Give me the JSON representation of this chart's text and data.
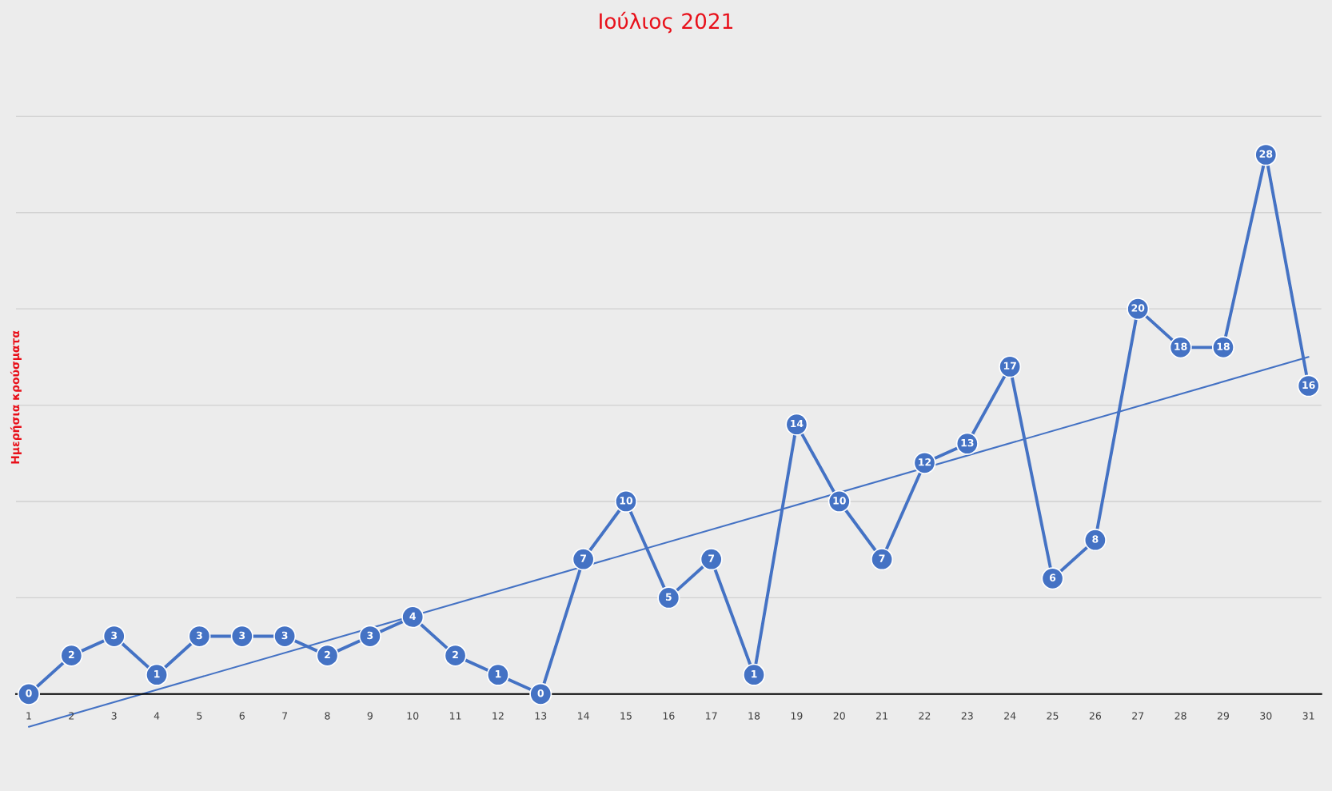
{
  "chart_data": {
    "type": "line",
    "title": "Ιούλιος 2021",
    "ylabel": "Ημερήσια κρούσματα",
    "categories": [
      "1",
      "2",
      "3",
      "4",
      "5",
      "6",
      "7",
      "8",
      "9",
      "10",
      "11",
      "12",
      "13",
      "14",
      "15",
      "16",
      "17",
      "18",
      "19",
      "20",
      "21",
      "22",
      "23",
      "24",
      "25",
      "26",
      "27",
      "28",
      "29",
      "30",
      "31"
    ],
    "series": [
      {
        "color": "#4472c4",
        "marker": "circle",
        "data_labels": true,
        "values": [
          0,
          2,
          3,
          1,
          3,
          3,
          3,
          2,
          3,
          4,
          2,
          1,
          0,
          7,
          10,
          5,
          7,
          1,
          14,
          10,
          7,
          12,
          13,
          17,
          6,
          8,
          20,
          18,
          18,
          28,
          16
        ]
      },
      {
        "type": "line",
        "color": "#4472c4",
        "marker": "none",
        "x": [
          "1",
          "31"
        ],
        "values": [
          -1.7,
          17.5
        ]
      }
    ],
    "yticks": [
      {
        "value": 0,
        "label": null
      },
      {
        "value": 5,
        "label": null
      },
      {
        "value": 10,
        "label": null
      },
      {
        "value": 15,
        "label": null
      },
      {
        "value": 20,
        "label": null
      },
      {
        "value": 25,
        "label": null
      },
      {
        "value": 30,
        "label": null
      }
    ],
    "tick_labels": "x",
    "grid": "y"
  }
}
